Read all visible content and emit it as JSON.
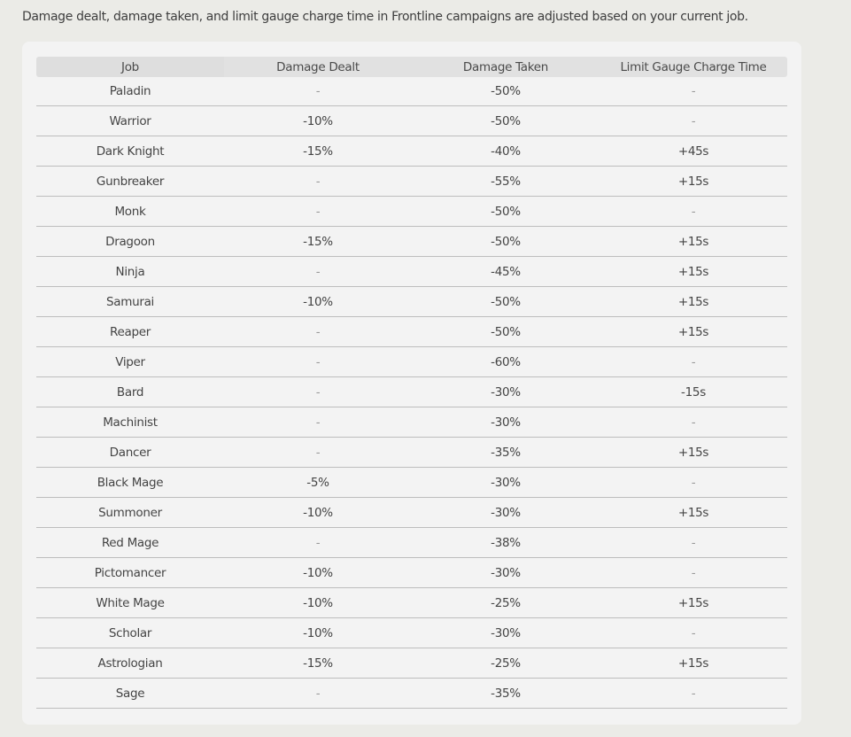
{
  "intro": "Damage dealt, damage taken, and limit gauge charge time in Frontline campaigns are adjusted based on your current job.",
  "table": {
    "headers": [
      "Job",
      "Damage Dealt",
      "Damage Taken",
      "Limit Gauge Charge Time"
    ],
    "rows": [
      [
        "Paladin",
        "-",
        "-50%",
        "-"
      ],
      [
        "Warrior",
        "-10%",
        "-50%",
        "-"
      ],
      [
        "Dark Knight",
        "-15%",
        "-40%",
        "+45s"
      ],
      [
        "Gunbreaker",
        "-",
        "-55%",
        "+15s"
      ],
      [
        "Monk",
        "-",
        "-50%",
        "-"
      ],
      [
        "Dragoon",
        "-15%",
        "-50%",
        "+15s"
      ],
      [
        "Ninja",
        "-",
        "-45%",
        "+15s"
      ],
      [
        "Samurai",
        "-10%",
        "-50%",
        "+15s"
      ],
      [
        "Reaper",
        "-",
        "-50%",
        "+15s"
      ],
      [
        "Viper",
        "-",
        "-60%",
        "-"
      ],
      [
        "Bard",
        "-",
        "-30%",
        "-15s"
      ],
      [
        "Machinist",
        "-",
        "-30%",
        "-"
      ],
      [
        "Dancer",
        "-",
        "-35%",
        "+15s"
      ],
      [
        "Black Mage",
        "-5%",
        "-30%",
        "-"
      ],
      [
        "Summoner",
        "-10%",
        "-30%",
        "+15s"
      ],
      [
        "Red Mage",
        "-",
        "-38%",
        "-"
      ],
      [
        "Pictomancer",
        "-10%",
        "-30%",
        "-"
      ],
      [
        "White Mage",
        "-10%",
        "-25%",
        "+15s"
      ],
      [
        "Scholar",
        "-10%",
        "-30%",
        "-"
      ],
      [
        "Astrologian",
        "-15%",
        "-25%",
        "+15s"
      ],
      [
        "Sage",
        "-",
        "-35%",
        "-"
      ]
    ]
  }
}
